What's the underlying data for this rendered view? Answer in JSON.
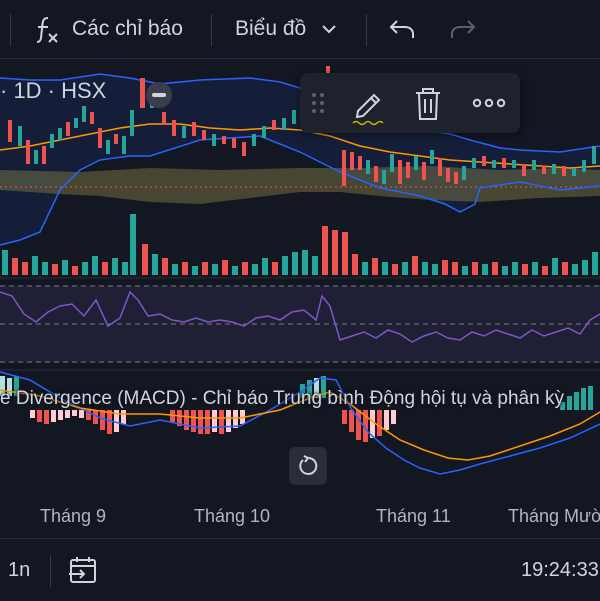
{
  "toolbar": {
    "indicators_label": "Các chỉ báo",
    "chart_type_label": "Biểu đồ"
  },
  "chart": {
    "symbol_suffix": "· 1D · HSX",
    "macd_label": "e Divergence (MACD) - Chỉ báo Trung bình Động hội tụ và phân kỳ",
    "time_labels": [
      "Tháng 9",
      "Tháng 10",
      "Tháng 11",
      "Tháng Mười"
    ]
  },
  "bottombar": {
    "interval_label": "1n",
    "clock": "19:24:33"
  },
  "colors": {
    "background": "#131722",
    "up": "#26a69a",
    "down": "#ef5350",
    "bollinger": "#2962ff",
    "ma": "#ff9800",
    "rsi": "#7e57c2"
  }
}
